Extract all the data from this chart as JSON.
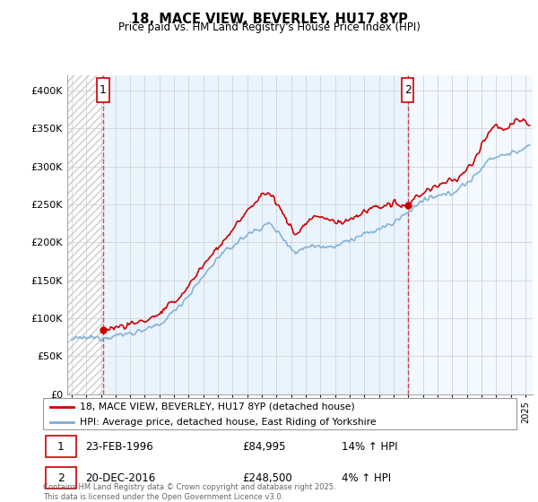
{
  "title_line1": "18, MACE VIEW, BEVERLEY, HU17 8YP",
  "title_line2": "Price paid vs. HM Land Registry's House Price Index (HPI)",
  "ylim": [
    0,
    420000
  ],
  "yticks": [
    0,
    50000,
    100000,
    150000,
    200000,
    250000,
    300000,
    350000,
    400000
  ],
  "xlim_start": 1993.7,
  "xlim_end": 2025.5,
  "legend_line1": "18, MACE VIEW, BEVERLEY, HU17 8YP (detached house)",
  "legend_line2": "HPI: Average price, detached house, East Riding of Yorkshire",
  "annotation1_label": "1",
  "annotation1_date": "23-FEB-1996",
  "annotation1_price": "£84,995",
  "annotation1_hpi": "14% ↑ HPI",
  "annotation2_label": "2",
  "annotation2_date": "20-DEC-2016",
  "annotation2_price": "£248,500",
  "annotation2_hpi": "4% ↑ HPI",
  "footer": "Contains HM Land Registry data © Crown copyright and database right 2025.\nThis data is licensed under the Open Government Licence v3.0.",
  "property_color": "#cc0000",
  "hpi_color": "#7aadd4",
  "sale1_x": 1996.15,
  "sale1_y": 84995,
  "sale2_x": 2016.97,
  "sale2_y": 248500
}
